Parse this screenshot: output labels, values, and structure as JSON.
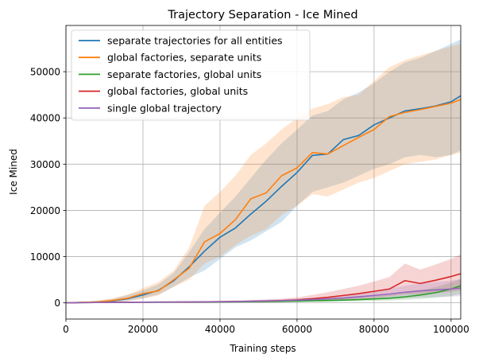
{
  "chart_data": {
    "type": "line",
    "title": "Trajectory Separation - Ice Mined",
    "xlabel": "Training steps",
    "ylabel": "Ice Mined",
    "xlim": [
      0,
      102500
    ],
    "ylim": [
      -3500,
      60000
    ],
    "xticks": [
      0,
      20000,
      40000,
      60000,
      80000,
      100000
    ],
    "yticks": [
      0,
      10000,
      20000,
      30000,
      40000,
      50000
    ],
    "grid": true,
    "legend_position": "upper-left",
    "series": [
      {
        "name": "separate trajectories for all entities",
        "color": "#1f77b4",
        "x": [
          0,
          4000,
          8000,
          12000,
          16000,
          20000,
          24000,
          28000,
          32000,
          36000,
          40000,
          44000,
          48000,
          52000,
          56000,
          60000,
          64000,
          68000,
          72000,
          76000,
          80000,
          84000,
          88000,
          92000,
          96000,
          100000,
          102500
        ],
        "y": [
          0,
          100,
          200,
          400,
          900,
          1700,
          2700,
          4800,
          7800,
          11200,
          14200,
          16200,
          19200,
          22000,
          25200,
          28200,
          31900,
          32200,
          35300,
          36200,
          38500,
          40000,
          41500,
          42000,
          42600,
          43500,
          44800
        ],
        "low": [
          0,
          0,
          50,
          100,
          400,
          1000,
          1800,
          3500,
          5500,
          7000,
          9500,
          12000,
          13500,
          15500,
          17500,
          21000,
          24000,
          25000,
          26000,
          27500,
          29000,
          30000,
          31500,
          32000,
          31500,
          32000,
          33000
        ],
        "high": [
          0,
          200,
          400,
          800,
          1700,
          2700,
          4000,
          6500,
          11000,
          16000,
          19500,
          23000,
          27000,
          31000,
          34500,
          37500,
          40500,
          41500,
          44000,
          45500,
          47500,
          50000,
          52000,
          53000,
          54500,
          56000,
          57000
        ]
      },
      {
        "name": "global factories, separate units",
        "color": "#ff7f0e",
        "x": [
          0,
          4000,
          8000,
          12000,
          16000,
          20000,
          24000,
          28000,
          32000,
          36000,
          40000,
          44000,
          48000,
          52000,
          56000,
          60000,
          64000,
          68000,
          72000,
          76000,
          80000,
          84000,
          88000,
          92000,
          96000,
          100000,
          102500
        ],
        "y": [
          0,
          100,
          200,
          500,
          1000,
          2000,
          2600,
          5000,
          7500,
          13200,
          15000,
          18000,
          22500,
          23800,
          27500,
          29200,
          32500,
          32200,
          34000,
          35800,
          37500,
          40300,
          41200,
          41800,
          42500,
          43200,
          44000
        ],
        "low": [
          0,
          0,
          50,
          150,
          400,
          900,
          1600,
          3500,
          5000,
          8500,
          10000,
          12500,
          14500,
          16000,
          19000,
          21000,
          23500,
          23000,
          24500,
          26000,
          27000,
          28500,
          30000,
          30500,
          31000,
          32000,
          32500
        ],
        "high": [
          0,
          200,
          500,
          1000,
          1800,
          3200,
          4500,
          7000,
          12000,
          21000,
          24000,
          27500,
          32000,
          34500,
          37500,
          40000,
          42000,
          43000,
          44500,
          45000,
          48000,
          51000,
          52500,
          53500,
          54500,
          55500,
          56000
        ]
      },
      {
        "name": "separate factories, global units",
        "color": "#2ca02c",
        "x": [
          0,
          4000,
          8000,
          12000,
          16000,
          20000,
          24000,
          28000,
          32000,
          36000,
          40000,
          44000,
          48000,
          52000,
          56000,
          60000,
          64000,
          68000,
          72000,
          76000,
          80000,
          84000,
          88000,
          92000,
          96000,
          100000,
          102500
        ],
        "y": [
          0,
          50,
          80,
          100,
          120,
          140,
          150,
          160,
          170,
          180,
          200,
          220,
          250,
          280,
          320,
          380,
          450,
          520,
          600,
          700,
          850,
          1000,
          1300,
          1700,
          2200,
          3000,
          3700
        ],
        "low": [
          0,
          0,
          20,
          30,
          40,
          50,
          60,
          60,
          70,
          70,
          80,
          90,
          100,
          120,
          150,
          180,
          220,
          250,
          300,
          350,
          400,
          500,
          650,
          850,
          1100,
          1500,
          1900
        ],
        "high": [
          0,
          100,
          150,
          170,
          200,
          230,
          250,
          270,
          290,
          310,
          340,
          380,
          420,
          470,
          540,
          640,
          760,
          880,
          1000,
          1150,
          1400,
          1700,
          2100,
          2700,
          3400,
          4400,
          5200
        ]
      },
      {
        "name": "global factories, global units",
        "color": "#d62728",
        "x": [
          0,
          4000,
          8000,
          12000,
          16000,
          20000,
          24000,
          28000,
          32000,
          36000,
          40000,
          44000,
          48000,
          52000,
          56000,
          60000,
          64000,
          68000,
          72000,
          76000,
          80000,
          84000,
          88000,
          92000,
          96000,
          100000,
          102500
        ],
        "y": [
          0,
          50,
          80,
          100,
          120,
          140,
          160,
          180,
          200,
          220,
          250,
          300,
          350,
          420,
          500,
          650,
          900,
          1200,
          1600,
          2000,
          2500,
          3000,
          4800,
          4200,
          4900,
          5700,
          6300
        ],
        "low": [
          0,
          0,
          20,
          30,
          40,
          50,
          60,
          70,
          80,
          90,
          100,
          120,
          150,
          190,
          240,
          300,
          400,
          550,
          700,
          900,
          1100,
          1400,
          1800,
          1900,
          2100,
          2400,
          2700
        ],
        "high": [
          0,
          100,
          150,
          180,
          220,
          250,
          280,
          310,
          350,
          390,
          430,
          500,
          600,
          720,
          900,
          1200,
          1700,
          2300,
          3000,
          3700,
          4600,
          5600,
          8500,
          7200,
          8300,
          9500,
          10500
        ]
      },
      {
        "name": "single global trajectory",
        "color": "#9467bd",
        "x": [
          0,
          4000,
          8000,
          12000,
          16000,
          20000,
          24000,
          28000,
          32000,
          36000,
          40000,
          44000,
          48000,
          52000,
          56000,
          60000,
          64000,
          68000,
          72000,
          76000,
          80000,
          84000,
          88000,
          92000,
          96000,
          100000,
          102500
        ],
        "y": [
          0,
          50,
          80,
          100,
          120,
          140,
          160,
          180,
          200,
          220,
          250,
          290,
          340,
          400,
          480,
          580,
          700,
          850,
          1050,
          1300,
          1600,
          1900,
          2300,
          2600,
          2800,
          3000,
          3200
        ],
        "low": [
          0,
          0,
          20,
          30,
          40,
          50,
          60,
          70,
          80,
          90,
          100,
          120,
          150,
          180,
          220,
          260,
          320,
          380,
          460,
          560,
          700,
          820,
          1000,
          1150,
          1250,
          1350,
          1450
        ],
        "high": [
          0,
          100,
          150,
          180,
          220,
          250,
          280,
          310,
          350,
          390,
          430,
          480,
          560,
          650,
          770,
          920,
          1100,
          1350,
          1700,
          2100,
          2600,
          3100,
          3700,
          4200,
          4500,
          4800,
          5100
        ]
      }
    ]
  }
}
